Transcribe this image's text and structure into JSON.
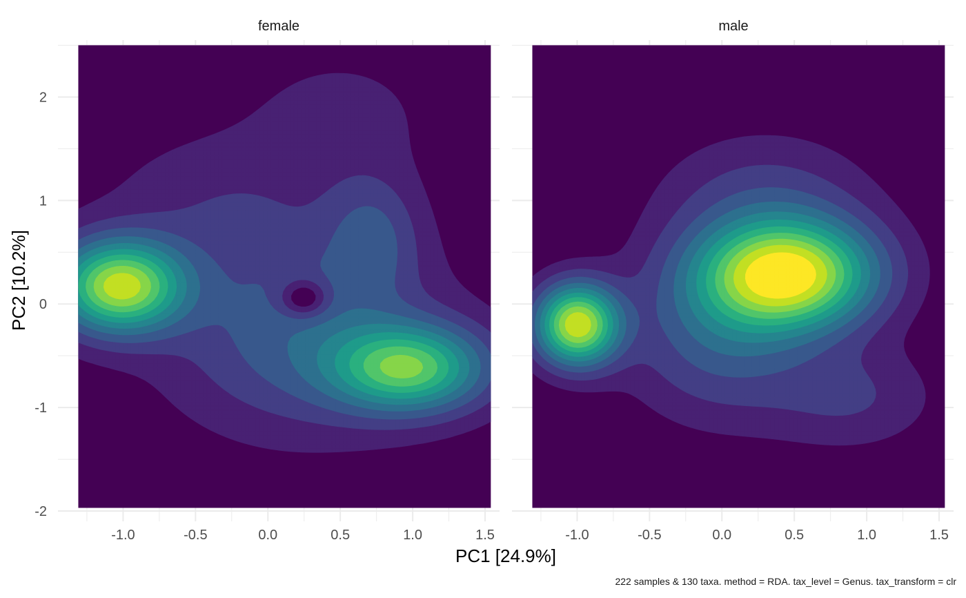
{
  "chart_data": {
    "type": "density-contour",
    "xlabel": "PC1 [24.9%]",
    "ylabel": "PC2 [10.2%]",
    "caption": "222 samples & 130 taxa. method = RDA. tax_level = Genus. tax_transform = clr",
    "xlim": [
      -1.45,
      1.6
    ],
    "ylim": [
      -2.1,
      2.55
    ],
    "xticks": [
      -1.0,
      -0.5,
      0.0,
      0.5,
      1.0,
      1.5
    ],
    "xtick_labels": [
      "-1.0",
      "-0.5",
      "0.0",
      "0.5",
      "1.0",
      "1.5"
    ],
    "yticks": [
      -2,
      -1,
      0,
      1,
      2
    ],
    "ytick_labels": [
      "-2",
      "-1",
      "0",
      "1",
      "2"
    ],
    "fill_region": {
      "x": [
        -1.31,
        1.54
      ],
      "y": [
        -1.97,
        2.5
      ]
    },
    "palette": [
      "#440154",
      "#482173",
      "#433e85",
      "#38588c",
      "#2d708e",
      "#25858e",
      "#1e9b8a",
      "#2ab07f",
      "#51c56a",
      "#86d549",
      "#c2df23",
      "#fde725"
    ],
    "grid": true,
    "panels": [
      {
        "strip_label": "female",
        "peaks": [
          {
            "x": -1.02,
            "y": 0.17,
            "sx": 0.3,
            "sy": 0.3,
            "w": 1.0
          },
          {
            "x": 0.97,
            "y": -0.62,
            "sx": 0.36,
            "sy": 0.28,
            "w": 0.78
          },
          {
            "x": 0.72,
            "y": 0.65,
            "sx": 0.22,
            "sy": 0.4,
            "w": 0.22
          },
          {
            "x": 0.25,
            "y": -0.3,
            "sx": 0.6,
            "sy": 0.6,
            "w": 0.3
          },
          {
            "x": -0.3,
            "y": 0.9,
            "sx": 0.55,
            "sy": 0.5,
            "w": 0.12
          },
          {
            "x": 0.5,
            "y": 1.8,
            "sx": 0.45,
            "sy": 0.45,
            "w": 0.08
          },
          {
            "x": 0.25,
            "y": 0.05,
            "sx": 0.12,
            "sy": 0.13,
            "w": -0.3
          }
        ],
        "levels": [
          0.05,
          0.13,
          0.22,
          0.32,
          0.42,
          0.52,
          0.62,
          0.72,
          0.82,
          0.92
        ]
      },
      {
        "strip_label": "male",
        "peaks": [
          {
            "x": 0.45,
            "y": 0.28,
            "sx": 0.42,
            "sy": 0.36,
            "w": 1.0
          },
          {
            "x": -1.0,
            "y": -0.2,
            "sx": 0.2,
            "sy": 0.27,
            "w": 0.95
          },
          {
            "x": 0.0,
            "y": -0.3,
            "sx": 0.45,
            "sy": 0.55,
            "w": 0.28
          },
          {
            "x": 0.3,
            "y": 1.0,
            "sx": 0.5,
            "sy": 0.45,
            "w": 0.18
          },
          {
            "x": 0.9,
            "y": -0.9,
            "sx": 0.4,
            "sy": 0.35,
            "w": 0.15
          }
        ],
        "levels": [
          0.06,
          0.13,
          0.21,
          0.29,
          0.37,
          0.45,
          0.53,
          0.61,
          0.69,
          0.77,
          0.86
        ]
      }
    ]
  }
}
